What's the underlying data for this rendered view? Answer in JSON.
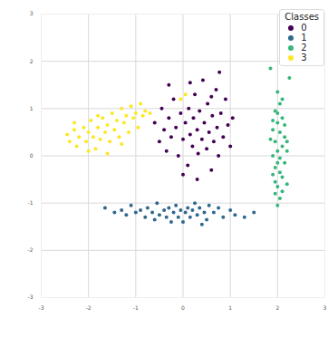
{
  "chart_data": {
    "type": "scatter",
    "legend_title": "Classes",
    "legend": "upper right",
    "grid": true,
    "xlim": [
      -3,
      3
    ],
    "ylim": [
      -3,
      3
    ],
    "xticks": [
      -3,
      -2,
      -1,
      0,
      1,
      2,
      3
    ],
    "yticks": [
      -3,
      -2,
      -1,
      0,
      1,
      2,
      3
    ],
    "series": [
      {
        "name": "0",
        "color": "#440154",
        "x": [
          -0.6,
          -0.5,
          -0.45,
          -0.4,
          -0.35,
          -0.3,
          -0.25,
          -0.2,
          -0.15,
          -0.1,
          -0.05,
          0.0,
          0.05,
          0.1,
          0.12,
          0.15,
          0.2,
          0.22,
          0.25,
          0.3,
          0.32,
          0.35,
          0.4,
          0.42,
          0.45,
          0.5,
          0.52,
          0.55,
          0.6,
          0.62,
          0.65,
          0.7,
          0.72,
          0.75,
          0.77,
          0.8,
          0.85,
          0.9,
          0.95,
          1.0,
          1.05,
          0.3,
          -0.3,
          0.6,
          0.0,
          0.15
        ],
        "values": [
          0.7,
          0.3,
          1.0,
          0.55,
          0.1,
          0.8,
          0.4,
          1.2,
          0.6,
          0.0,
          0.9,
          0.35,
          0.7,
          -0.2,
          1.0,
          0.45,
          0.2,
          0.8,
          1.3,
          0.55,
          0.05,
          0.95,
          0.35,
          1.6,
          0.7,
          0.15,
          1.1,
          0.5,
          -0.3,
          0.85,
          0.3,
          1.4,
          0.6,
          0.0,
          1.77,
          0.9,
          0.4,
          1.2,
          0.65,
          0.2,
          0.8,
          -0.5,
          1.5,
          1.25,
          -0.4,
          1.55
        ]
      },
      {
        "name": "1",
        "color": "#31688e",
        "x": [
          -1.65,
          -1.45,
          -1.3,
          -1.2,
          -1.1,
          -1.0,
          -0.9,
          -0.8,
          -0.75,
          -0.65,
          -0.55,
          -0.5,
          -0.4,
          -0.35,
          -0.3,
          -0.2,
          -0.15,
          -0.1,
          -0.05,
          0.0,
          0.05,
          0.1,
          0.15,
          0.2,
          0.25,
          0.3,
          0.35,
          0.45,
          0.5,
          0.55,
          0.65,
          0.75,
          0.85,
          1.0,
          1.1,
          1.3,
          1.5,
          -0.6,
          0.4,
          -0.25
        ],
        "values": [
          -1.1,
          -1.2,
          -1.15,
          -1.25,
          -1.05,
          -1.2,
          -1.15,
          -1.3,
          -1.1,
          -1.2,
          -1.0,
          -1.25,
          -1.15,
          -1.3,
          -1.1,
          -1.2,
          -1.05,
          -1.3,
          -1.15,
          -1.4,
          -1.2,
          -1.1,
          -1.3,
          -1.15,
          -1.0,
          -1.25,
          -1.1,
          -1.2,
          -1.35,
          -1.05,
          -1.2,
          -1.1,
          -1.3,
          -1.15,
          -1.25,
          -1.3,
          -1.2,
          -1.35,
          -1.45,
          -1.4
        ]
      },
      {
        "name": "2",
        "color": "#35b779",
        "x": [
          1.85,
          2.25,
          2.0,
          2.05,
          1.95,
          2.1,
          2.0,
          1.9,
          2.05,
          2.15,
          1.95,
          2.1,
          2.0,
          1.9,
          2.05,
          2.15,
          1.95,
          2.05,
          2.1,
          1.95,
          2.0,
          2.1,
          2.05,
          2.0,
          2.15,
          1.85,
          2.2,
          1.9,
          2.2,
          2.0,
          2.1,
          1.95,
          2.2,
          1.9,
          2.0
        ],
        "values": [
          1.85,
          1.65,
          1.35,
          1.1,
          0.95,
          0.8,
          0.7,
          0.55,
          0.5,
          0.4,
          0.3,
          0.2,
          0.1,
          0.0,
          -0.05,
          -0.15,
          -0.25,
          -0.35,
          -0.45,
          -0.55,
          -0.65,
          -0.75,
          -0.9,
          -1.05,
          0.65,
          0.35,
          0.1,
          -0.4,
          -0.6,
          0.9,
          1.2,
          -0.8,
          0.3,
          0.75,
          -0.15
        ]
      },
      {
        "name": "3",
        "color": "#fde725",
        "x": [
          -2.45,
          -2.4,
          -2.3,
          -2.25,
          -2.2,
          -2.1,
          -2.05,
          -2.0,
          -1.95,
          -1.9,
          -1.85,
          -1.8,
          -1.75,
          -1.7,
          -1.65,
          -1.6,
          -1.55,
          -1.5,
          -1.45,
          -1.4,
          -1.35,
          -1.3,
          -1.25,
          -1.2,
          -1.15,
          -1.1,
          -1.05,
          -1.0,
          -0.95,
          -0.9,
          -0.85,
          -0.8,
          -1.6,
          -2.0,
          -1.3,
          -0.7,
          0.05,
          -0.05,
          -1.8,
          -2.3
        ],
        "values": [
          0.45,
          0.3,
          0.55,
          0.2,
          0.4,
          0.6,
          0.3,
          0.5,
          0.75,
          0.4,
          0.15,
          0.6,
          0.35,
          0.8,
          0.5,
          0.65,
          0.3,
          0.9,
          0.55,
          0.75,
          0.4,
          1.0,
          0.7,
          0.85,
          0.5,
          1.05,
          0.8,
          0.9,
          0.6,
          1.1,
          0.85,
          0.95,
          0.05,
          0.1,
          0.25,
          0.9,
          1.3,
          1.2,
          0.85,
          0.7
        ]
      }
    ]
  }
}
